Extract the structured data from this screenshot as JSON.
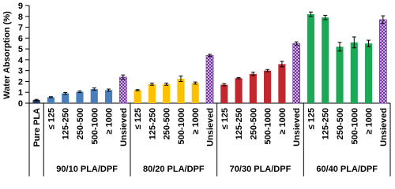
{
  "chart_data": {
    "type": "bar",
    "ylabel": "Water Absorption (%)",
    "ylim": [
      0,
      9
    ],
    "yticks": [
      0,
      1,
      2,
      3,
      4,
      5,
      6,
      7,
      8,
      9
    ],
    "hatch_color": "#7030a0",
    "groups": [
      {
        "categories": [
          "Pure PLA"
        ],
        "values": [
          0.3
        ],
        "errors": [
          0.05
        ],
        "color": "#1f3864",
        "hatched": [
          false
        ]
      },
      {
        "name": "90/10 PLA/DPF",
        "categories": [
          "≤ 125",
          "125-250",
          "250-500",
          "500-1000",
          "≥ 1000",
          "Unsieved"
        ],
        "values": [
          0.55,
          0.9,
          1.05,
          1.3,
          1.2,
          2.4
        ],
        "errors": [
          0.05,
          0.08,
          0.08,
          0.1,
          0.1,
          0.2
        ],
        "color": "#4a7ebb",
        "hatched": [
          false,
          false,
          false,
          false,
          false,
          true
        ]
      },
      {
        "name": "80/20 PLA/DPF",
        "categories": [
          "≤ 125",
          "125-250",
          "250-500",
          "500-1000",
          "≥ 1000",
          "Unsieved"
        ],
        "values": [
          1.2,
          1.75,
          1.75,
          2.25,
          1.85,
          4.4
        ],
        "errors": [
          0.05,
          0.1,
          0.1,
          0.25,
          0.1,
          0.1
        ],
        "color": "#ffc000",
        "hatched": [
          false,
          false,
          false,
          false,
          false,
          true
        ]
      },
      {
        "name": "70/30 PLA/DPF",
        "categories": [
          "≤ 125",
          "125-250",
          "250-500",
          "500-1000",
          "≥ 1000",
          "Unsieved"
        ],
        "values": [
          1.7,
          2.3,
          2.7,
          3.0,
          3.6,
          5.5
        ],
        "errors": [
          0.1,
          0.05,
          0.15,
          0.1,
          0.25,
          0.15
        ],
        "color": "#c0282e",
        "hatched": [
          false,
          false,
          false,
          false,
          false,
          true
        ]
      },
      {
        "name": "60/40 PLA/DPF",
        "categories": [
          "≤ 125",
          "125-250",
          "250-500",
          "500-1000",
          "≥ 1000",
          "Unsieved"
        ],
        "values": [
          8.2,
          7.9,
          5.2,
          5.6,
          5.5,
          7.7
        ],
        "errors": [
          0.2,
          0.2,
          0.4,
          0.5,
          0.3,
          0.35
        ],
        "color": "#1aaa55",
        "hatched": [
          false,
          false,
          false,
          false,
          false,
          true
        ]
      }
    ]
  }
}
